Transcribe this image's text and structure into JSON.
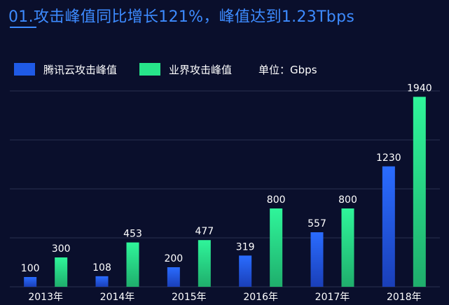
{
  "header": {
    "title": "01.攻击峰值同比增长121%，峰值达到1.23Tbps"
  },
  "legend": {
    "unit_label": "单位：Gbps"
  },
  "colors": {
    "background": "#0a0f2c",
    "title": "#3d8bff",
    "tencent_bar": "#1f5ae6",
    "industry_bar": "#27e58a",
    "grid": "#2a3050",
    "text": "#ffffff"
  },
  "chart_data": {
    "type": "bar",
    "categories": [
      "2013年",
      "2014年",
      "2015年",
      "2016年",
      "2017年",
      "2018年"
    ],
    "series": [
      {
        "name": "腾讯云攻击峰值",
        "values": [
          100,
          108,
          200,
          319,
          557,
          1230
        ]
      },
      {
        "name": "业界攻击峰值",
        "values": [
          300,
          453,
          477,
          800,
          800,
          1940
        ]
      }
    ],
    "ylim": [
      0,
      2000
    ],
    "grid": true,
    "legend_position": "top-left"
  }
}
